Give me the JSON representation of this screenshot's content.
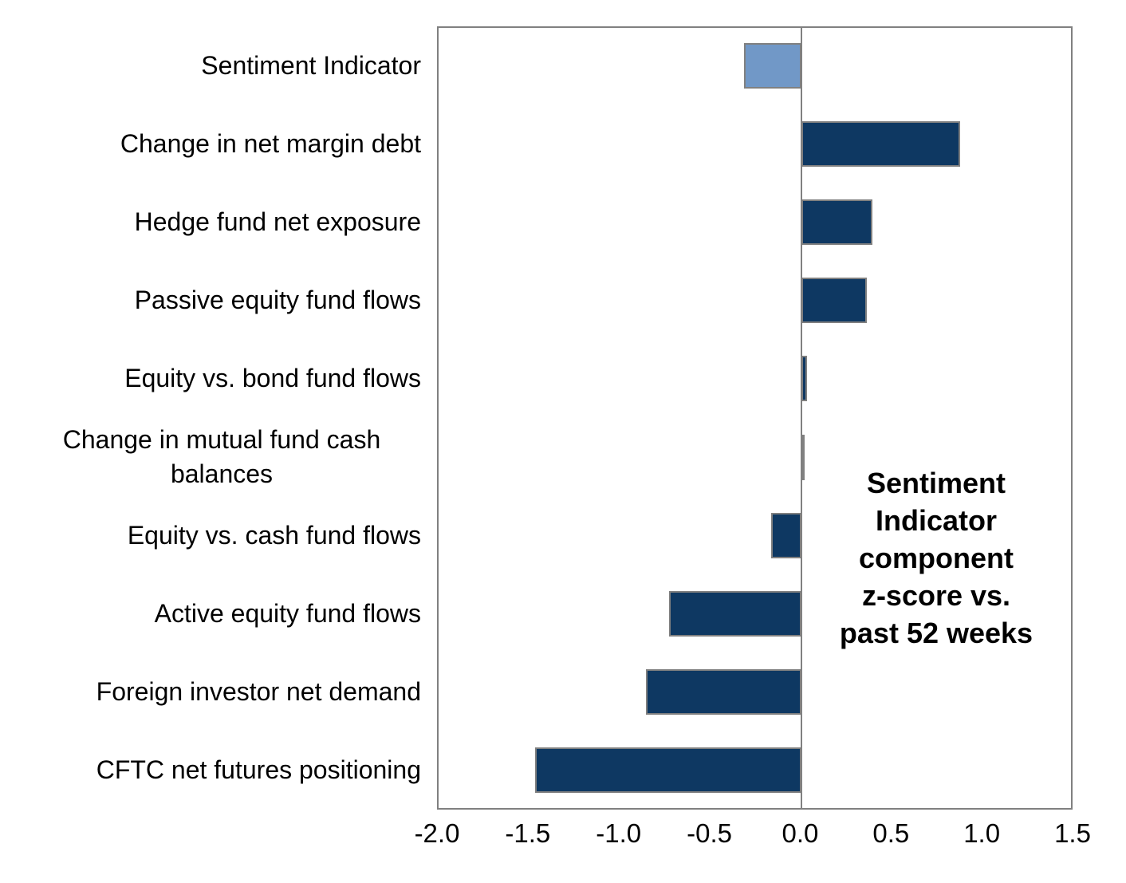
{
  "chart_data": {
    "type": "bar",
    "orientation": "horizontal",
    "categories": [
      "Sentiment Indicator",
      "Change in net margin debt",
      "Hedge fund net exposure",
      "Passive equity fund flows",
      "Equity vs. bond fund flows",
      "Change in mutual fund cash balances",
      "Equity vs. cash fund flows",
      "Active equity fund flows",
      "Foreign investor net demand",
      "CFTC net futures positioning"
    ],
    "values": [
      -0.32,
      0.87,
      0.39,
      0.36,
      0.03,
      0.01,
      -0.17,
      -0.73,
      -0.86,
      -1.47
    ],
    "highlight_index": 0,
    "xlim": [
      -2.0,
      1.5
    ],
    "xtick_labels": [
      "-2.0",
      "-1.5",
      "-1.0",
      "-0.5",
      "0.0",
      "0.5",
      "1.0",
      "1.5"
    ],
    "xtick_values": [
      -2.0,
      -1.5,
      -1.0,
      -0.5,
      0.0,
      0.5,
      1.0,
      1.5
    ],
    "annotation": {
      "text": "Sentiment Indicator component z-score vs. past 52 weeks",
      "lines": [
        "Sentiment",
        "Indicator",
        "component",
        "z-score vs.",
        "past 52 weeks"
      ]
    },
    "colors": {
      "bar_fill": "#0E3862",
      "highlight_fill": "#7198C7",
      "bar_border": "#808080",
      "axis_gray": "#808080",
      "text": "#000000"
    },
    "grid": false,
    "legend": false
  }
}
